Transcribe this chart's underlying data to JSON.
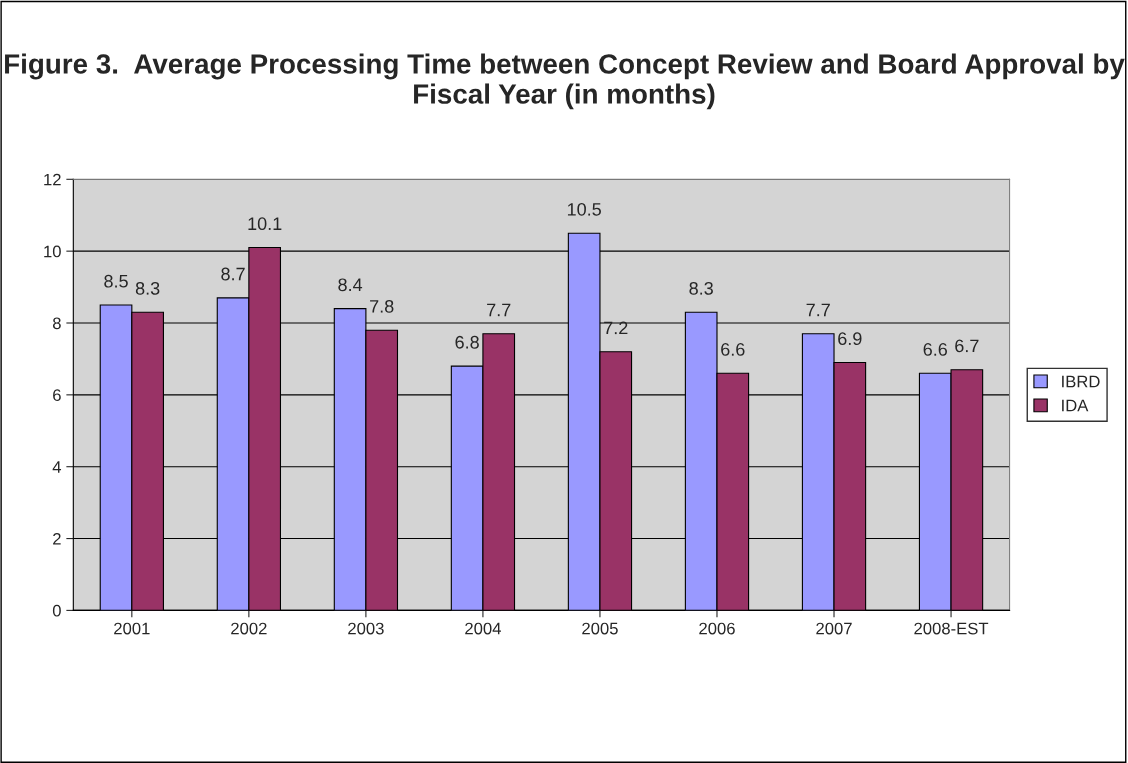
{
  "chart_data": {
    "type": "bar",
    "title": "Figure 3.  Average Processing Time between Concept Review and Board Approval by Fiscal Year (in months)",
    "categories": [
      "2001",
      "2002",
      "2003",
      "2004",
      "2005",
      "2006",
      "2007",
      "2008-EST"
    ],
    "series": [
      {
        "name": "IBRD",
        "color": "#9999ff",
        "values": [
          8.5,
          8.7,
          8.4,
          6.8,
          10.5,
          8.3,
          7.7,
          6.6
        ]
      },
      {
        "name": "IDA",
        "color": "#993366",
        "values": [
          8.3,
          10.1,
          7.8,
          7.7,
          7.2,
          6.6,
          6.9,
          6.7
        ]
      }
    ],
    "ylim": [
      0,
      12
    ],
    "yticks": [
      0,
      2,
      4,
      6,
      8,
      10,
      12
    ],
    "grid": "y",
    "legend": "right",
    "data_labels": true
  }
}
